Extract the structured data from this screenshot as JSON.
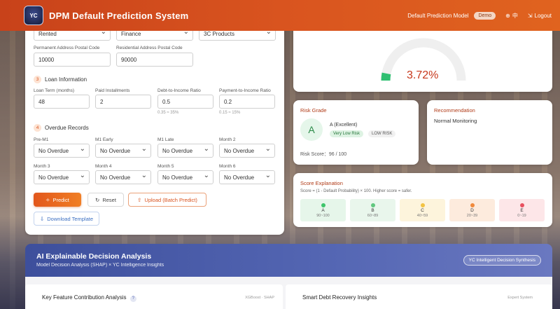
{
  "header": {
    "logo_text": "YC",
    "title": "DPM Default Prediction System",
    "model_label": "Default Prediction Model",
    "demo_badge": "Demo",
    "language": "中",
    "logout": "Logout"
  },
  "form": {
    "top_selects": [
      "Rented",
      "Finance",
      "3C Products"
    ],
    "permanent_postal": {
      "label": "Permanent Address Postal Code",
      "value": "10000"
    },
    "residential_postal": {
      "label": "Residential Address Postal Code",
      "value": "90000"
    },
    "loan_section": {
      "num": "3",
      "title": "Loan Information"
    },
    "loan_fields": [
      {
        "label": "Loan Term (months)",
        "value": "48",
        "hint": ""
      },
      {
        "label": "Paid Installments",
        "value": "2",
        "hint": ""
      },
      {
        "label": "Debt-to-Income Ratio",
        "value": "0.5",
        "hint": "0.35 ≈ 35%"
      },
      {
        "label": "Payment-to-Income Ratio",
        "value": "0.2",
        "hint": "0.15 ≈ 15%"
      }
    ],
    "overdue_section": {
      "num": "4",
      "title": "Overdue Records"
    },
    "overdue_row1": [
      {
        "label": "Pre-M1",
        "value": "No Overdue"
      },
      {
        "label": "M1 Early",
        "value": "No Overdue"
      },
      {
        "label": "M1 Late",
        "value": "No Overdue"
      },
      {
        "label": "Month 2",
        "value": "No Overdue"
      }
    ],
    "overdue_row2": [
      {
        "label": "Month 3",
        "value": "No Overdue"
      },
      {
        "label": "Month 4",
        "value": "No Overdue"
      },
      {
        "label": "Month 5",
        "value": "No Overdue"
      },
      {
        "label": "Month 6",
        "value": "No Overdue"
      }
    ],
    "buttons": {
      "predict": "Predict",
      "reset": "Reset",
      "upload": "Upload (Batch Predict)",
      "template": "Download Template"
    }
  },
  "gauge": {
    "value_text": "3.72%",
    "fraction": 0.0372,
    "color": "#2fbf71"
  },
  "risk_grade": {
    "title": "Risk Grade",
    "letter": "A",
    "name": "A (Excellent)",
    "chip1": "Very Low Risk",
    "chip2": "LOW RISK",
    "score_text": "Risk Score：96 / 100"
  },
  "recommendation": {
    "title": "Recommendation",
    "text": "Normal Monitoring"
  },
  "score_explanation": {
    "title": "Score Explanation",
    "desc": "Score = (1 - Default Probability) × 100. Higher score = safer.",
    "grades": [
      {
        "letter": "A",
        "range": "90~100",
        "bg": "#e6f6ea",
        "dot": "#3ec56b"
      },
      {
        "letter": "B",
        "range": "60~89",
        "bg": "#e9f6ec",
        "dot": "#61c77f"
      },
      {
        "letter": "C",
        "range": "40~59",
        "bg": "#fdf4dc",
        "dot": "#f2c343"
      },
      {
        "letter": "D",
        "range": "20~39",
        "bg": "#fdebdd",
        "dot": "#f08a3d"
      },
      {
        "letter": "E",
        "range": "0~19",
        "bg": "#fde6e8",
        "dot": "#e8505f"
      }
    ]
  },
  "analysis": {
    "title": "AI Explainable Decision Analysis",
    "subtitle": "Model Decision Analysis (SHAP) × YC Intelligence Insights",
    "chip": "YC Intelligent Decision Synthesis",
    "left_title": "Key Feature Contribution Analysis",
    "left_help": "?",
    "left_tag": "XGBoost · SHAP",
    "right_title": "Smart Debt Recovery Insights",
    "right_tag": "Expert System"
  }
}
